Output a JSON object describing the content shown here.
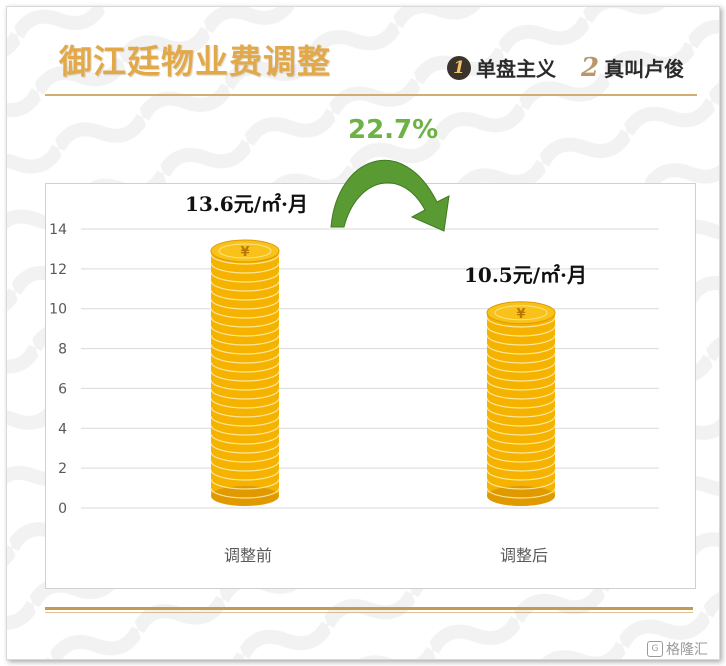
{
  "header": {
    "title": "御江廷物业费调整",
    "brand_1_num": "1",
    "brand_1_text": "单盘主义",
    "brand_2_num": "2",
    "brand_2_text": "真叫卢俊"
  },
  "change_label": "22.7%",
  "chart_data": {
    "type": "bar",
    "categories": [
      "调整前",
      "调整后"
    ],
    "values": [
      13.6,
      10.5
    ],
    "data_labels": [
      "13.6元/㎡·月",
      "10.5元/㎡·月"
    ],
    "ylim": [
      0,
      14
    ],
    "yticks": [
      0,
      2,
      4,
      6,
      8,
      10,
      12,
      14
    ],
    "grid": true,
    "bar_style": "coin stack",
    "colors": {
      "coin": "#f5b300",
      "coin_edge": "#e09a00",
      "arrow": "#5a9a32"
    }
  },
  "watermark": "格隆汇"
}
